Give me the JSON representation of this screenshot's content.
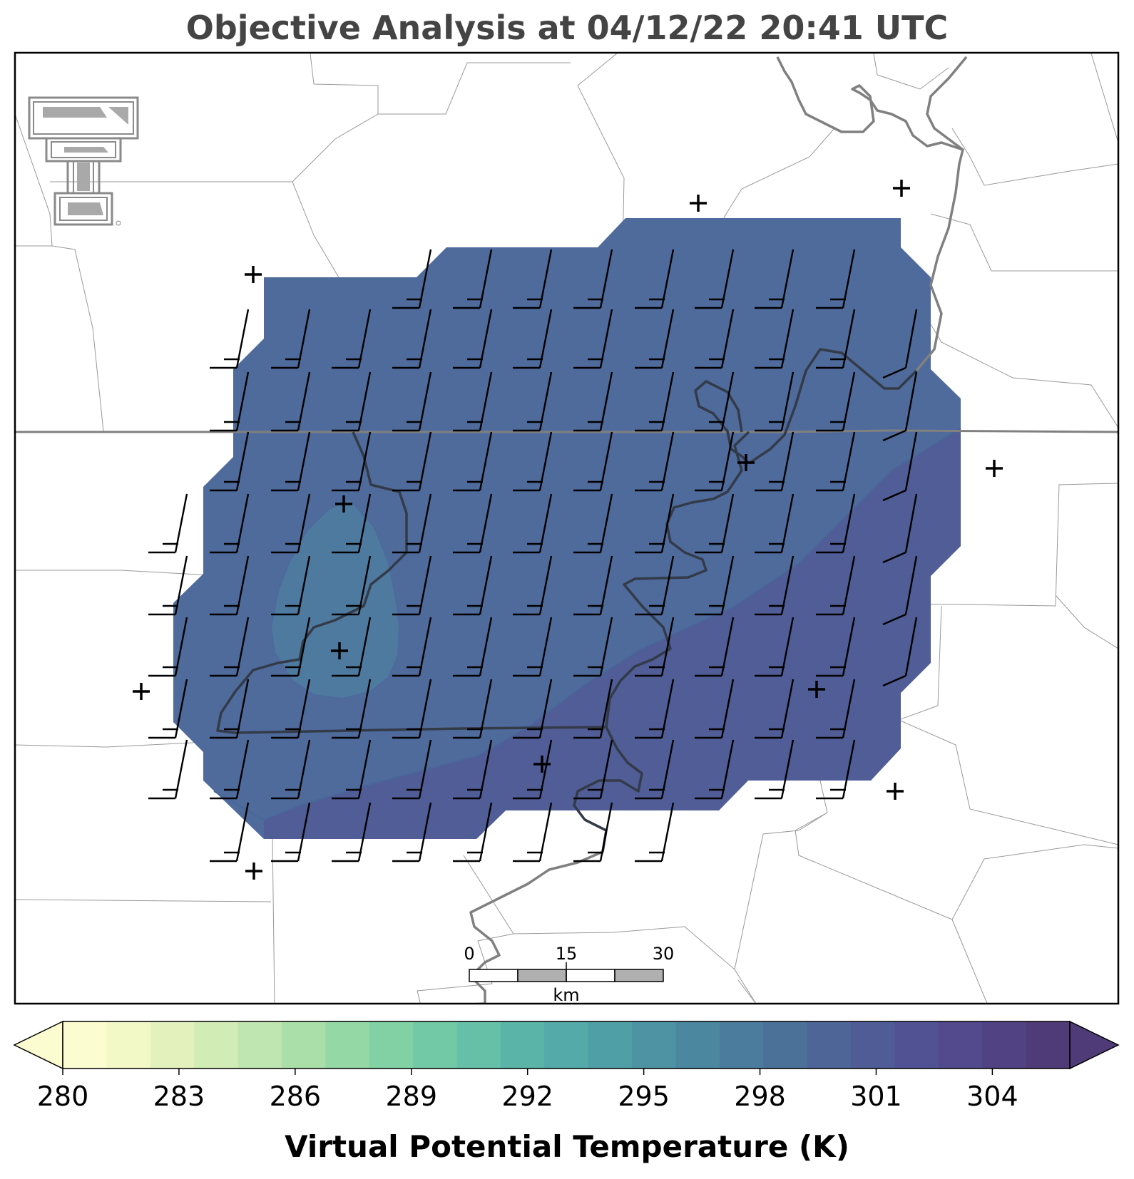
{
  "title": "Objective Analysis at 04/12/22 20:41 UTC",
  "colorbar": {
    "label": "Virtual Potential Temperature (K)",
    "ticks": [
      280,
      283,
      286,
      289,
      292,
      295,
      298,
      301,
      304
    ],
    "min": 280,
    "max": 306,
    "extend": "both",
    "colors": [
      "#fbfcd0",
      "#f2f8c6",
      "#e3f2bd",
      "#d2ecb6",
      "#bfe6b0",
      "#aadfa9",
      "#94d8a5",
      "#82d1a4",
      "#72c9a6",
      "#65c0a7",
      "#5ab5a8",
      "#53aaa8",
      "#4f9fa6",
      "#4d93a4",
      "#4c87a0",
      "#4c7c9d",
      "#4c7199",
      "#4d6697",
      "#4f5c96",
      "#515293",
      "#524a8d",
      "#514283",
      "#4e3b78"
    ]
  },
  "scale_bar": {
    "labels": [
      "0",
      "15",
      "30"
    ],
    "unit": "km"
  },
  "field_fill": {
    "main": "#4f6b9c",
    "warm": "#505d96",
    "cool": "#4f7aa0"
  },
  "icons": [
    "texas-tech-logo-icon"
  ]
}
